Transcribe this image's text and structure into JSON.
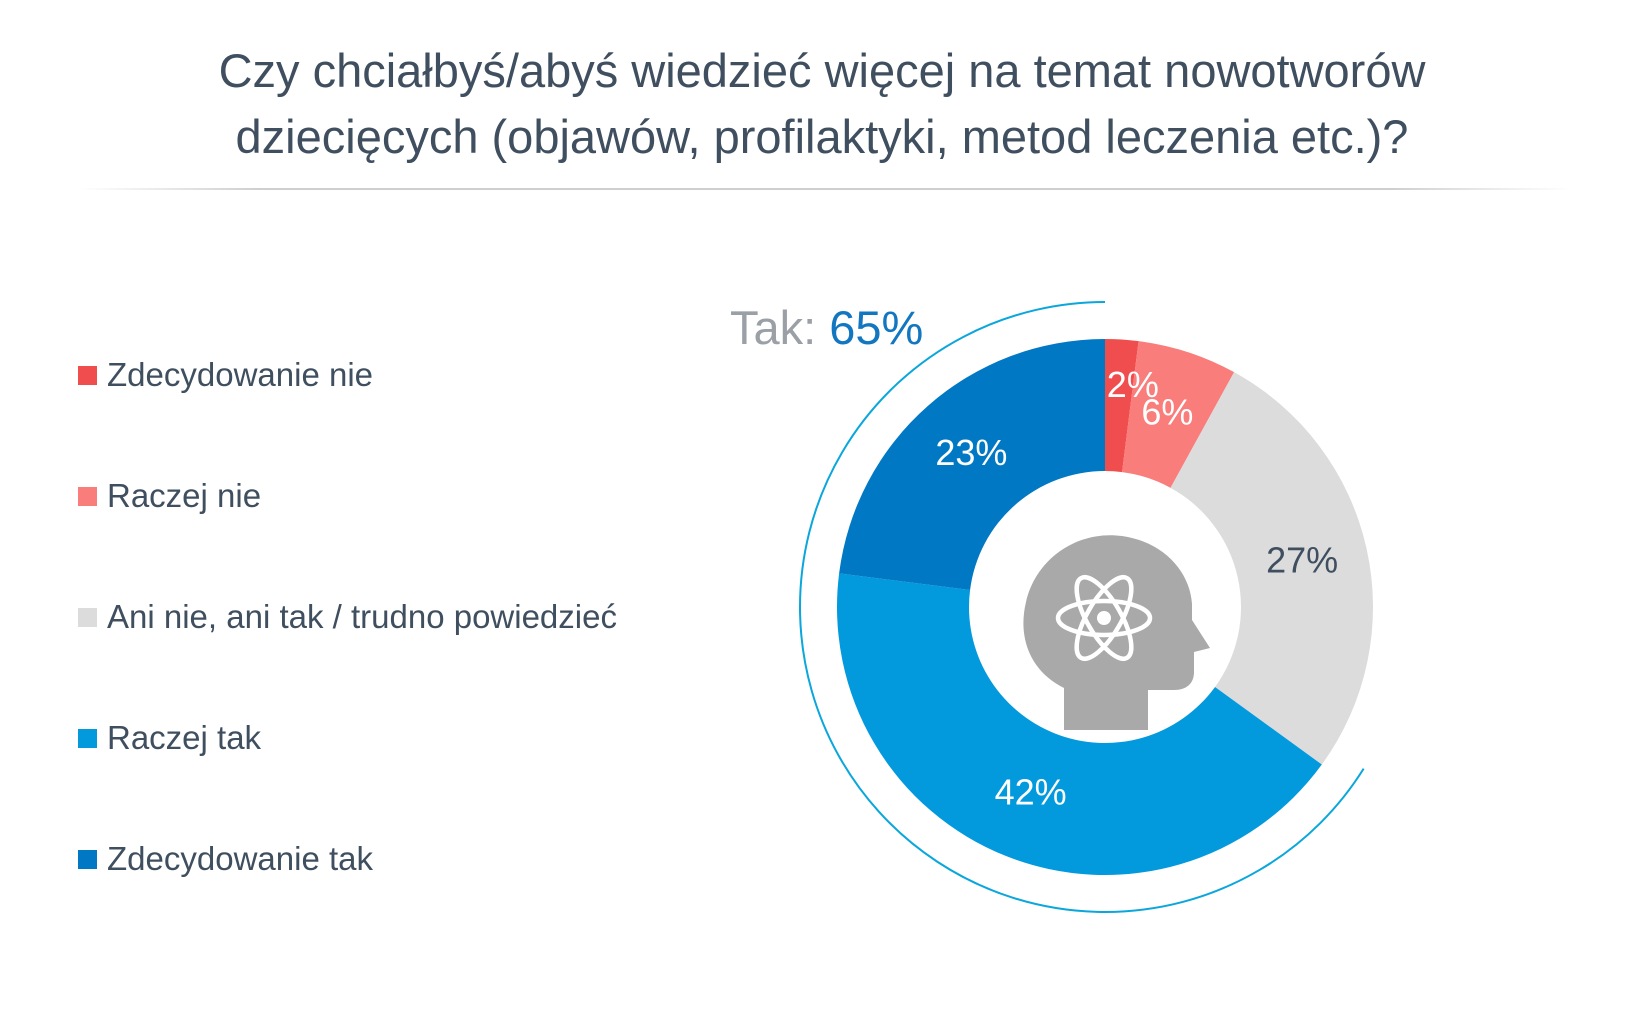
{
  "title_line1": "Czy chciałbyś/abyś wiedzieć więcej na temat nowotworów",
  "title_line2": "dziecięcych (objawów, profilaktyki, metod leczenia etc.)?",
  "callout": {
    "label": "Tak:",
    "value": "65%"
  },
  "icon": "head-atom-icon",
  "chart_data": {
    "type": "pie",
    "donut": true,
    "legend_position": "left",
    "categories": [
      "Zdecydowanie nie",
      "Raczej nie",
      "Ani nie, ani tak / trudno powiedzieć",
      "Raczej tak",
      "Zdecydowanie tak"
    ],
    "values": [
      2,
      6,
      27,
      42,
      23
    ],
    "labels": [
      "2%",
      "6%",
      "27%",
      "42%",
      "23%"
    ],
    "colors": [
      "#f04e4e",
      "#f87d7b",
      "#dcdcdc",
      "#0399dd",
      "#0078c4"
    ],
    "label_colors": [
      "#ffffff",
      "#ffffff",
      "#3f4f5f",
      "#ffffff",
      "#ffffff"
    ]
  }
}
